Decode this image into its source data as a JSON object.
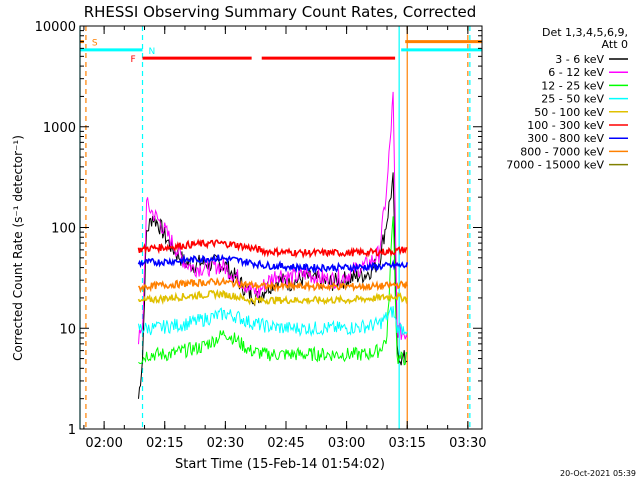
{
  "chart_data": {
    "type": "line",
    "title": "RHESSI Observing Summary Count Rates, Corrected",
    "ylabel": "Corrected Count Rate (s⁻¹ detector⁻¹)",
    "xlabel": "Start Time (15-Feb-14 01:54:02)",
    "yscale": "log",
    "ylim": [
      1,
      10000
    ],
    "xlim": [
      "01:54:02",
      "03:33:30"
    ],
    "x_ticks": [
      "02:00",
      "02:15",
      "02:30",
      "02:45",
      "03:00",
      "03:15",
      "03:30"
    ],
    "y_ticks": [
      "1",
      "10",
      "100",
      "1000",
      "10000"
    ],
    "footer": "20-Oct-2021 05:39",
    "legend": {
      "position": "top-right",
      "header_lines": [
        "Det 1,3,4,5,6,9,",
        "Att 0"
      ],
      "entries": [
        {
          "label": "3 - 6 keV",
          "color": "#000000"
        },
        {
          "label": "6 - 12 keV",
          "color": "#ff00ff"
        },
        {
          "label": "12 - 25 keV",
          "color": "#00ff00"
        },
        {
          "label": "25 - 50 keV",
          "color": "#00ffff"
        },
        {
          "label": "50 - 100 keV",
          "color": "#e0c000"
        },
        {
          "label": "100 - 300 keV",
          "color": "#ff0000"
        },
        {
          "label": "300 - 800 keV",
          "color": "#0000ff"
        },
        {
          "label": "800 - 7000 keV",
          "color": "#ff8000"
        },
        {
          "label": "7000 - 15000 keV",
          "color": "#808000"
        }
      ]
    },
    "markers": [
      {
        "label": "S",
        "color": "#ff8000"
      },
      {
        "label": "N",
        "color": "#00ffff"
      },
      {
        "label": "F",
        "color": "#ff0000"
      }
    ],
    "series": [
      {
        "name": "3 - 6 keV",
        "color": "#000000",
        "x": [
          "02:08:30",
          "02:09:30",
          "02:10:30",
          "02:12:00",
          "02:14:00",
          "02:16:00",
          "02:18:00",
          "02:20:00",
          "02:22:00",
          "02:24:00",
          "02:26:00",
          "02:28:00",
          "02:30:00",
          "02:33:00",
          "02:36:00",
          "02:38:00",
          "02:40:00",
          "02:43:00",
          "02:46:00",
          "02:48:00",
          "02:50:00",
          "02:53:00",
          "02:56:00",
          "02:59:00",
          "03:02:00",
          "03:05:00",
          "03:08:00",
          "03:10:00",
          "03:11:30",
          "03:12:30",
          "03:13:30",
          "03:15:00"
        ],
        "y": [
          2,
          5,
          90,
          130,
          100,
          70,
          55,
          45,
          42,
          45,
          43,
          45,
          42,
          30,
          22,
          20,
          25,
          30,
          28,
          30,
          32,
          30,
          28,
          30,
          32,
          35,
          45,
          120,
          300,
          6,
          5,
          5
        ]
      },
      {
        "name": "6 - 12 keV",
        "color": "#ff00ff",
        "x": [
          "02:08:30",
          "02:09:30",
          "02:10:30",
          "02:12:00",
          "02:14:00",
          "02:16:00",
          "02:18:00",
          "02:20:00",
          "02:22:00",
          "02:24:00",
          "02:26:00",
          "02:28:00",
          "02:30:00",
          "02:33:00",
          "02:36:00",
          "02:38:00",
          "02:40:00",
          "02:43:00",
          "02:46:00",
          "02:48:00",
          "02:50:00",
          "02:53:00",
          "02:56:00",
          "02:59:00",
          "03:02:00",
          "03:05:00",
          "03:08:00",
          "03:10:00",
          "03:11:30",
          "03:12:30",
          "03:13:30",
          "03:15:00"
        ],
        "y": [
          8,
          9,
          170,
          140,
          110,
          80,
          60,
          45,
          40,
          40,
          40,
          42,
          40,
          32,
          25,
          22,
          28,
          35,
          32,
          33,
          35,
          32,
          30,
          32,
          38,
          42,
          55,
          250,
          2000,
          10,
          9,
          9
        ]
      },
      {
        "name": "12 - 25 keV",
        "color": "#00ff00",
        "x": [
          "02:08:30",
          "02:09:30",
          "02:10:30",
          "02:13:00",
          "02:16:00",
          "02:20:00",
          "02:24:00",
          "02:27:00",
          "02:30:00",
          "02:33:00",
          "02:36:00",
          "02:40:00",
          "02:45:00",
          "02:50:00",
          "02:55:00",
          "03:00:00",
          "03:05:00",
          "03:08:00",
          "03:10:00",
          "03:11:30",
          "03:12:30",
          "03:13:30",
          "03:15:00"
        ],
        "y": [
          5,
          5,
          5.5,
          5.5,
          5.5,
          6,
          6.5,
          7.5,
          9,
          7.5,
          6,
          5.5,
          5.5,
          5.5,
          5.5,
          5.5,
          5.5,
          6,
          8,
          150,
          5,
          5,
          5
        ]
      },
      {
        "name": "25 - 50 keV",
        "color": "#00ffff",
        "x": [
          "02:08:30",
          "02:09:30",
          "02:10:30",
          "02:13:00",
          "02:16:00",
          "02:20:00",
          "02:24:00",
          "02:27:00",
          "02:30:00",
          "02:33:00",
          "02:36:00",
          "02:40:00",
          "02:45:00",
          "02:50:00",
          "02:55:00",
          "03:00:00",
          "03:05:00",
          "03:08:00",
          "03:10:00",
          "03:11:30",
          "03:12:30",
          "03:13:30",
          "03:15:00"
        ],
        "y": [
          10,
          10,
          10,
          10,
          10.5,
          11,
          12,
          13,
          14,
          13,
          11.5,
          10.5,
          10,
          10,
          10,
          10,
          10.5,
          11,
          13,
          15,
          10,
          10,
          10
        ]
      },
      {
        "name": "50 - 100 keV",
        "color": "#e0c000",
        "x": [
          "02:08:30",
          "02:10:30",
          "02:16:00",
          "02:22:00",
          "02:28:00",
          "02:32:00",
          "02:36:00",
          "02:40:00",
          "02:50:00",
          "03:00:00",
          "03:08:00",
          "03:12:00",
          "03:13:30",
          "03:15:00"
        ],
        "y": [
          18,
          19,
          20,
          21,
          22,
          21,
          19,
          19,
          19,
          19,
          20,
          21,
          20,
          20
        ]
      },
      {
        "name": "100 - 300 keV",
        "color": "#ff0000",
        "x": [
          "02:08:30",
          "02:10:30",
          "02:16:00",
          "02:22:00",
          "02:28:00",
          "02:32:00",
          "02:36:00",
          "02:40:00",
          "02:50:00",
          "03:00:00",
          "03:08:00",
          "03:12:00",
          "03:13:30",
          "03:15:00"
        ],
        "y": [
          60,
          62,
          64,
          68,
          70,
          68,
          63,
          58,
          56,
          56,
          57,
          58,
          60,
          60
        ]
      },
      {
        "name": "300 - 800 keV",
        "color": "#0000ff",
        "x": [
          "02:08:30",
          "02:10:30",
          "02:16:00",
          "02:22:00",
          "02:28:00",
          "02:32:00",
          "02:36:00",
          "02:40:00",
          "02:50:00",
          "03:00:00",
          "03:08:00",
          "03:12:00",
          "03:13:30",
          "03:15:00"
        ],
        "y": [
          44,
          45,
          46,
          48,
          50,
          48,
          45,
          42,
          40,
          40,
          41,
          42,
          42,
          42
        ]
      },
      {
        "name": "800 - 7000 keV",
        "color": "#ff8000",
        "x": [
          "02:08:30",
          "02:10:30",
          "02:16:00",
          "02:22:00",
          "02:28:00",
          "02:32:00",
          "02:36:00",
          "02:40:00",
          "02:50:00",
          "03:00:00",
          "03:08:00",
          "03:12:00",
          "03:13:30",
          "03:15:00"
        ],
        "y": [
          25,
          26,
          27,
          28,
          29,
          28,
          27,
          26,
          26,
          26,
          26,
          27,
          27,
          27
        ]
      }
    ],
    "state_bars": [
      {
        "label": "S",
        "color": "#ff8000",
        "segments": [
          [
            "01:54:02",
            "01:55:00"
          ],
          [
            "03:14:30",
            "03:33:30"
          ]
        ],
        "y": 7000
      },
      {
        "label": "N",
        "color": "#00ffff",
        "segments": [
          [
            "01:54:02",
            "02:09:30"
          ],
          [
            "03:13:30",
            "03:33:30"
          ]
        ],
        "y": 5800
      },
      {
        "label": "F",
        "color": "#ff0000",
        "segments": [
          [
            "02:09:30",
            "02:36:30"
          ],
          [
            "02:39:00",
            "03:12:00"
          ]
        ],
        "y": 4800
      }
    ],
    "vlines": [
      {
        "color": "#00ffff",
        "style": "solid",
        "x": "01:54:02"
      },
      {
        "color": "#ff8000",
        "style": "dashed",
        "x": "01:55:30"
      },
      {
        "color": "#00ffff",
        "style": "dashed",
        "x": "02:09:30"
      },
      {
        "color": "#00ffff",
        "style": "solid",
        "x": "03:13:00"
      },
      {
        "color": "#ff8000",
        "style": "solid",
        "x": "03:15:00"
      },
      {
        "color": "#ff8000",
        "style": "dashed",
        "x": "03:30:00"
      },
      {
        "color": "#00ffff",
        "style": "dashed",
        "x": "03:30:30"
      }
    ]
  }
}
